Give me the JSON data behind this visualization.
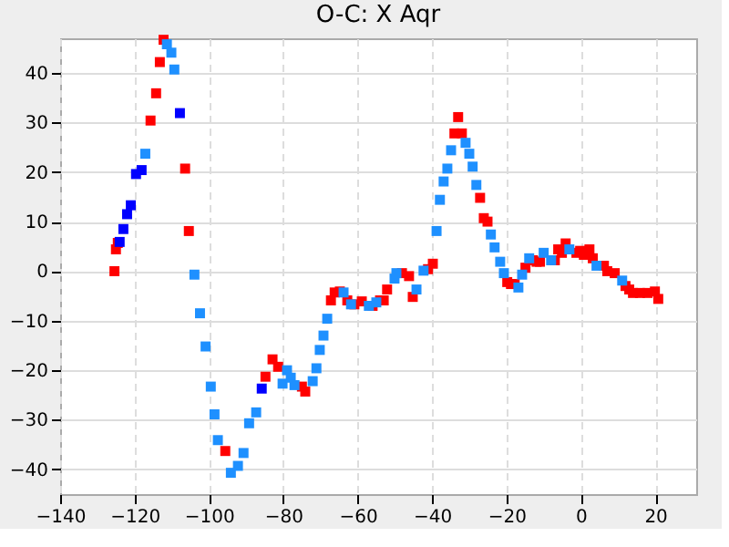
{
  "chart_data": {
    "type": "scatter",
    "title": "O-C: X Aqr",
    "xlim": [
      -140,
      31
    ],
    "ylim": [
      -45,
      47
    ],
    "xticks": [
      -140,
      -120,
      -100,
      -80,
      -60,
      -40,
      -20,
      0,
      20
    ],
    "yticks": [
      -40,
      -30,
      -20,
      -10,
      0,
      10,
      20,
      30,
      40
    ],
    "grid": true,
    "marker": "square",
    "series": [
      {
        "color": "#ff0000",
        "x": [
          -125.4,
          -125.0,
          -124.5,
          -115.7,
          -114.2,
          -113.2,
          -112.2,
          -106.4,
          -105.4,
          -95.6,
          -84.8,
          -82.9,
          -81.4,
          -75.0,
          -74.1,
          -67.2,
          -66.2,
          -64.8,
          -62.8,
          -60.9,
          -58.9,
          -56.0,
          -54.0,
          -53.0,
          -52.1,
          -48.1,
          -46.2,
          -45.2,
          -41.1,
          -39.8,
          -34.0,
          -33.0,
          -32.0,
          -27.1,
          -26.1,
          -25.1,
          -19.8,
          -18.8,
          -17.8,
          -14.9,
          -12.9,
          -11.9,
          -11.0,
          -7.0,
          -6.1,
          -5.1,
          -4.1,
          -1.2,
          -0.2,
          0.8,
          2.3,
          3.2,
          6.2,
          7.1,
          9.1,
          12.0,
          13.0,
          14.0,
          15.9,
          17.9,
          19.9,
          20.8
        ],
        "values": [
          0,
          4.4,
          5.7,
          30.4,
          35.9,
          42.2,
          46.7,
          20.7,
          8.1,
          -36.3,
          -21.3,
          -17.8,
          -19.3,
          -23.3,
          -24.3,
          -5.9,
          -4.3,
          -4.1,
          -5.9,
          -6.7,
          -6.1,
          -7.0,
          -5.9,
          -5.9,
          -3.7,
          -0.4,
          -1.0,
          -5.2,
          0.4,
          1.5,
          27.8,
          31.1,
          27.8,
          14.8,
          10.7,
          10.0,
          -2.2,
          -2.6,
          -2.6,
          0.7,
          2.2,
          1.9,
          1.9,
          2.2,
          4.4,
          3.7,
          5.6,
          3.7,
          4.1,
          3.3,
          4.4,
          2.6,
          1.1,
          0,
          -0.4,
          -3.0,
          -3.7,
          -4.4,
          -4.4,
          -4.4,
          -4.1,
          -5.6
        ]
      },
      {
        "color": "#1e90ff",
        "x": [
          -117.1,
          -111.3,
          -110.1,
          -109.3,
          -103.9,
          -102.4,
          -100.9,
          -99.5,
          -98.5,
          -97.6,
          -94.1,
          -92.2,
          -90.7,
          -89.2,
          -87.3,
          -80.2,
          -79.0,
          -78.0,
          -77.0,
          -72.1,
          -71.1,
          -70.2,
          -69.2,
          -68.2,
          -63.8,
          -61.8,
          -57.0,
          -55.0,
          -50.1,
          -49.6,
          -44.2,
          -42.3,
          -38.8,
          -37.9,
          -36.9,
          -35.9,
          -34.9,
          -31.0,
          -30.0,
          -29.1,
          -28.1,
          -24.2,
          -23.2,
          -21.7,
          -20.7,
          -16.8,
          -15.8,
          -13.9,
          -10.0,
          -8.0,
          -3.1,
          4.2,
          11.1
        ],
        "values": [
          23.7,
          45.8,
          44.1,
          40.7,
          -0.7,
          -8.5,
          -15.2,
          -23.3,
          -28.9,
          -34.1,
          -40.7,
          -39.3,
          -36.7,
          -30.7,
          -28.5,
          -22.7,
          -20.0,
          -21.5,
          -23.0,
          -22.2,
          -19.6,
          -15.9,
          -13.0,
          -9.6,
          -4.3,
          -6.7,
          -7.0,
          -6.3,
          -1.5,
          -0.4,
          -3.7,
          0.1,
          8.1,
          14.4,
          18.1,
          20.7,
          24.4,
          25.9,
          23.7,
          21.1,
          17.4,
          7.4,
          4.8,
          1.9,
          -0.4,
          -3.3,
          -0.7,
          2.6,
          3.7,
          2.2,
          4.4,
          1.1,
          -1.9
        ]
      },
      {
        "color": "#0000ff",
        "x": [
          -124.0,
          -123.0,
          -122.0,
          -121.0,
          -119.6,
          -118.1,
          -107.8,
          -85.8
        ],
        "values": [
          5.9,
          8.5,
          11.5,
          13.3,
          19.6,
          20.4,
          31.9,
          -23.7
        ]
      }
    ]
  }
}
